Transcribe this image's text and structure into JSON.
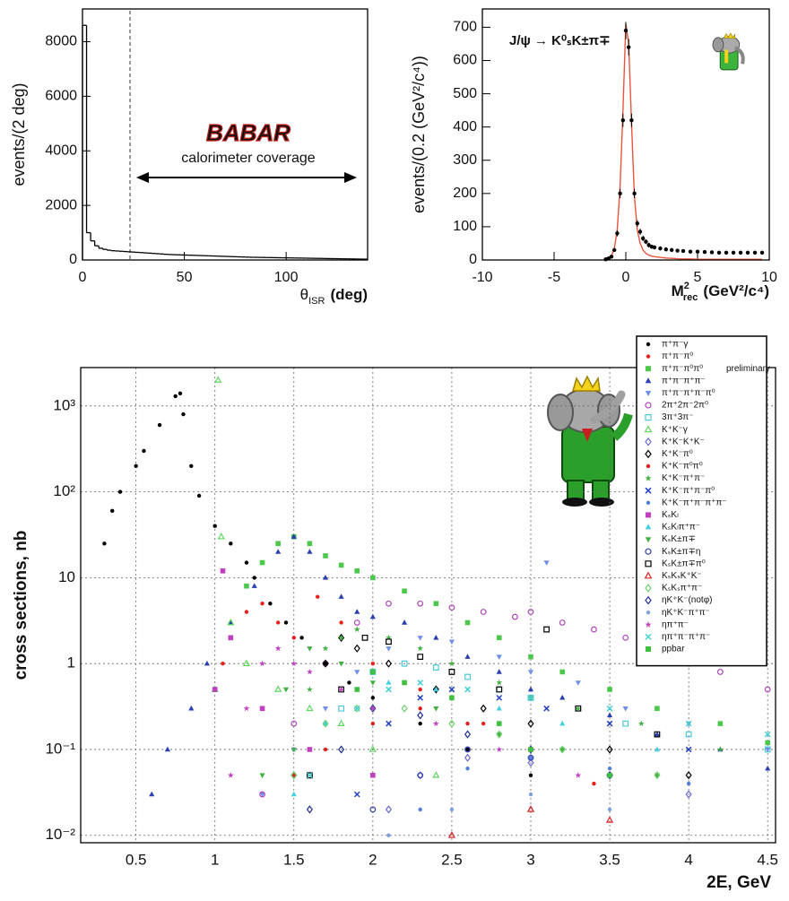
{
  "chart_data": [
    {
      "type": "histogram",
      "y_label": "events/(2 deg)",
      "x_label": {
        "text": "θ",
        "sub": "ISR",
        "unit": "(deg)"
      },
      "logo": "BABAR",
      "annotation": "calorimeter coverage",
      "bins": [
        0,
        2,
        4,
        6,
        8,
        10,
        12,
        14,
        16,
        18,
        20,
        22,
        24,
        26,
        28,
        30,
        32,
        34,
        36,
        38,
        40,
        42,
        44,
        46,
        48,
        50,
        52,
        54,
        56,
        58,
        60,
        62,
        64,
        66,
        68,
        70,
        72,
        74,
        76,
        78,
        80,
        82,
        84,
        86,
        88,
        90,
        92,
        94,
        96,
        98,
        100,
        102,
        104,
        106,
        108,
        110,
        112,
        114,
        116,
        118,
        120,
        122,
        124,
        126,
        128,
        130,
        132,
        134,
        136,
        138,
        140
      ],
      "values": [
        8600,
        1000,
        700,
        520,
        430,
        390,
        360,
        340,
        330,
        320,
        310,
        300,
        290,
        280,
        270,
        260,
        250,
        240,
        230,
        220,
        210,
        200,
        195,
        190,
        185,
        180,
        175,
        170,
        165,
        160,
        155,
        150,
        145,
        140,
        135,
        130,
        125,
        120,
        115,
        110,
        105,
        100,
        98,
        95,
        92,
        90,
        88,
        85,
        82,
        80,
        78,
        75,
        72,
        70,
        68,
        65,
        62,
        60,
        58,
        55,
        52,
        50,
        48,
        45,
        42,
        40,
        38,
        35,
        32,
        30
      ],
      "color": "#000000",
      "xlim": [
        0,
        140
      ],
      "ylim": [
        0,
        9200
      ],
      "xticks": [
        0,
        50,
        100
      ],
      "yticks": [
        0,
        2000,
        4000,
        6000,
        8000
      ]
    },
    {
      "type": "scatter",
      "annotation": "J/ψ → K⁰ₛK±π∓",
      "y_label": "events/(0.2 (GeV²/c⁴))",
      "x_label": {
        "text": "M",
        "sup": "2",
        "sub": "rec",
        "unit": "(GeV²/c⁴)"
      },
      "x": [
        -1.4,
        -1.2,
        -1.0,
        -0.8,
        -0.6,
        -0.4,
        -0.2,
        0,
        0.2,
        0.4,
        0.6,
        0.8,
        1.0,
        1.2,
        1.4,
        1.6,
        1.8,
        2.0,
        2.4,
        2.8,
        3.2,
        3.6,
        4,
        4.5,
        5,
        5.5,
        6,
        6.5,
        7,
        7.5,
        8,
        8.5,
        9,
        9.5
      ],
      "series": [
        {
          "color": "#e8553f",
          "line": true,
          "values": [
            2,
            5,
            12,
            35,
            90,
            220,
            450,
            710,
            650,
            410,
            190,
            90,
            50,
            30,
            20,
            15,
            12,
            10,
            8,
            6,
            5,
            4,
            3,
            3,
            2,
            2,
            2,
            2,
            2,
            2,
            2,
            2,
            2,
            2
          ]
        },
        {
          "color": "#000000",
          "marker": "dot",
          "values": [
            2,
            5,
            10,
            30,
            80,
            200,
            420,
            690,
            640,
            420,
            200,
            110,
            85,
            65,
            55,
            45,
            40,
            38,
            35,
            32,
            30,
            28,
            27,
            25,
            25,
            24,
            23,
            22,
            22,
            22,
            22,
            22,
            22,
            22
          ],
          "errors": [
            1,
            2,
            3,
            5,
            9,
            14,
            20,
            26,
            25,
            20,
            14,
            10,
            9,
            8,
            7,
            7,
            6,
            6,
            6,
            6,
            5,
            5,
            5,
            5,
            5,
            5,
            5,
            5,
            5,
            5,
            5,
            5,
            5,
            5
          ]
        }
      ],
      "xlim": [
        -10,
        10
      ],
      "ylim": [
        0,
        755
      ],
      "xticks": [
        -10,
        -5,
        0,
        5,
        10
      ],
      "yticks": [
        0,
        100,
        200,
        300,
        400,
        500,
        600,
        700
      ]
    },
    {
      "type": "scatter",
      "y_label": "cross sections, nb",
      "x_label": "2E, GeV",
      "annotation": "preliminary",
      "log_y": true,
      "grid": true,
      "legend": "upper right",
      "xlim": [
        0.15,
        4.55
      ],
      "ylim": [
        0.0082,
        2800
      ],
      "xticks": [
        0.5,
        1,
        1.5,
        2,
        2.5,
        3,
        3.5,
        4,
        4.5
      ],
      "yticks": [
        {
          "value": 0.01,
          "label": "10⁻²"
        },
        {
          "value": 0.1,
          "label": "10⁻¹"
        },
        1,
        10,
        {
          "value": 100,
          "label": "10²"
        },
        {
          "value": 1000,
          "label": "10³"
        }
      ],
      "series": [
        {
          "name": "π⁺π⁻γ",
          "color": "#000000",
          "marker": "dot",
          "x": [
            0.3,
            0.35,
            0.4,
            0.5,
            0.55,
            0.65,
            0.75,
            0.78,
            0.8,
            0.85,
            0.9,
            1.0,
            1.1,
            1.2,
            1.25,
            1.35,
            1.45,
            1.55,
            1.7,
            1.85,
            2.0,
            2.3,
            2.6,
            3.0
          ],
          "values": [
            25,
            60,
            100,
            200,
            300,
            600,
            1300,
            1400,
            800,
            200,
            90,
            40,
            25,
            15,
            10,
            5,
            3,
            2,
            1,
            0.6,
            0.4,
            0.2,
            0.1,
            0.05
          ]
        },
        {
          "name": "π⁺π⁻π⁰",
          "color": "#e8201c",
          "marker": "dot",
          "x": [
            1.05,
            1.1,
            1.2,
            1.3,
            1.4,
            1.5,
            1.65,
            1.8,
            2.0,
            2.3,
            2.7,
            3.0,
            3.4
          ],
          "values": [
            1,
            3,
            4,
            5,
            3,
            2,
            6,
            3,
            1,
            0.5,
            0.2,
            0.1,
            0.04
          ]
        },
        {
          "name": "π⁺π⁻π⁰π⁰",
          "color": "#4cc84c",
          "marker": "square",
          "x": [
            1.0,
            1.1,
            1.2,
            1.3,
            1.4,
            1.5,
            1.6,
            1.7,
            1.8,
            1.9,
            2.0,
            2.2,
            2.4,
            2.6,
            2.8,
            3.0,
            3.2,
            3.5,
            3.8,
            4.2,
            4.5
          ],
          "values": [
            0.5,
            2,
            8,
            15,
            25,
            30,
            25,
            18,
            14,
            12,
            10,
            7,
            5,
            3,
            2,
            1.2,
            0.8,
            0.5,
            0.3,
            0.2,
            0.12
          ]
        },
        {
          "name": "π⁺π⁻π⁺π⁻",
          "color": "#2a3fb0",
          "marker": "triangle",
          "x": [
            0.6,
            0.7,
            0.85,
            0.95,
            1.1,
            1.25,
            1.4,
            1.5,
            1.6,
            1.7,
            1.8,
            1.9,
            2.0,
            2.2,
            2.4,
            2.6,
            2.8,
            3.0,
            3.2,
            3.5,
            3.8,
            4.2,
            4.5
          ],
          "values": [
            0.03,
            0.1,
            0.3,
            1,
            3,
            8,
            20,
            30,
            20,
            10,
            6,
            4,
            3.5,
            3,
            2,
            1.2,
            0.8,
            0.5,
            0.4,
            0.25,
            0.15,
            0.1,
            0.06
          ]
        },
        {
          "name": "π⁺π⁻π⁺π⁻π⁰",
          "color": "#6f8fe8",
          "marker": "triangle-down",
          "x": [
            1.3,
            1.5,
            1.7,
            1.9,
            2.1,
            2.3,
            2.5,
            2.8,
            3.0,
            3.1,
            3.3,
            3.6,
            4.0,
            4.5
          ],
          "values": [
            0.03,
            0.1,
            0.3,
            0.8,
            1.5,
            2,
            1.8,
            1.2,
            0.8,
            15,
            0.6,
            0.3,
            0.2,
            0.1
          ]
        },
        {
          "name": "2π⁺2π⁻2π⁰",
          "color": "#b044b8",
          "marker": "circle-open",
          "x": [
            1.3,
            1.5,
            1.7,
            1.9,
            2.1,
            2.3,
            2.5,
            2.7,
            2.9,
            3.0,
            3.2,
            3.4,
            3.6,
            3.8,
            4.0,
            4.2,
            4.5
          ],
          "values": [
            0.03,
            0.2,
            1,
            3,
            5,
            5,
            4.5,
            4,
            3.5,
            4,
            3,
            2.5,
            2,
            1.5,
            1,
            0.8,
            0.5
          ]
        },
        {
          "name": "3π⁺3π⁻",
          "color": "#4cc8d8",
          "marker": "square-open",
          "x": [
            1.6,
            1.8,
            2.0,
            2.2,
            2.4,
            2.6,
            2.8,
            3.0,
            3.3,
            3.6,
            4.0,
            4.5
          ],
          "values": [
            0.05,
            0.3,
            0.8,
            1,
            0.9,
            0.7,
            0.5,
            0.4,
            0.3,
            0.2,
            0.15,
            0.1
          ]
        },
        {
          "name": "K⁺K⁻γ",
          "color": "#5ed85e",
          "marker": "triangle-open",
          "x": [
            1.0,
            1.02,
            1.04,
            1.1,
            1.2,
            1.4,
            1.6,
            1.8,
            2.0,
            2.4
          ],
          "values": [
            0.5,
            2000,
            30,
            3,
            1,
            0.5,
            0.3,
            0.2,
            0.1,
            0.05
          ]
        },
        {
          "name": "K⁺K⁻K⁺K⁻",
          "color": "#6a6ad0",
          "marker": "diamond-open",
          "x": [
            2.1,
            2.3,
            2.6,
            3.0,
            3.5,
            4.0
          ],
          "values": [
            0.02,
            0.05,
            0.08,
            0.07,
            0.05,
            0.03
          ]
        },
        {
          "name": "K⁺K⁻π⁰",
          "color": "#000000",
          "marker": "diamond-open",
          "x": [
            1.5,
            1.7,
            1.8,
            1.9,
            2.1,
            2.4,
            2.7,
            3.0,
            3.5,
            4.0
          ],
          "values": [
            0.05,
            1,
            2,
            1.5,
            1,
            0.5,
            0.3,
            0.2,
            0.1,
            0.05
          ]
        },
        {
          "name": "K⁺K⁻π⁰π⁰",
          "color": "#e02020",
          "marker": "dot",
          "x": [
            1.5,
            1.7,
            2.0,
            2.3,
            2.6,
            3.0,
            3.5
          ],
          "values": [
            0.05,
            0.1,
            0.2,
            0.3,
            0.2,
            0.1,
            0.05
          ]
        },
        {
          "name": "K⁺K⁻π⁺π⁻",
          "color": "#40b040",
          "marker": "star",
          "x": [
            1.5,
            1.6,
            1.7,
            1.8,
            1.9,
            2.1,
            2.3,
            2.5,
            2.8,
            3.0,
            3.3,
            3.7,
            4.2
          ],
          "values": [
            0.1,
            0.5,
            1.5,
            2,
            2.5,
            2,
            1.5,
            1,
            0.6,
            0.4,
            0.3,
            0.2,
            0.1
          ]
        },
        {
          "name": "K⁺K⁻π⁺π⁻π⁰",
          "color": "#2040c0",
          "marker": "x",
          "x": [
            1.9,
            2.1,
            2.3,
            2.5,
            2.8,
            3.1,
            3.5,
            4.0
          ],
          "values": [
            0.03,
            0.2,
            0.4,
            0.5,
            0.4,
            0.3,
            0.2,
            0.1
          ]
        },
        {
          "name": "K⁺K⁻π⁺π⁻π⁺π⁻",
          "color": "#4f7fd8",
          "marker": "dot",
          "x": [
            2.3,
            2.6,
            3.0,
            3.5,
            4.0
          ],
          "values": [
            0.02,
            0.06,
            0.08,
            0.06,
            0.04
          ]
        },
        {
          "name": "KₛKₗ",
          "color": "#c040c0",
          "marker": "square",
          "x": [
            1.0,
            1.05,
            1.1,
            1.3,
            1.6,
            2.0
          ],
          "values": [
            0.5,
            12,
            2,
            0.3,
            0.1,
            0.05
          ]
        },
        {
          "name": "KₛKₗπ⁺π⁻",
          "color": "#40d0e0",
          "marker": "triangle",
          "x": [
            1.5,
            1.7,
            1.9,
            2.1,
            2.4,
            2.8,
            3.2,
            3.8
          ],
          "values": [
            0.03,
            0.2,
            0.5,
            0.6,
            0.5,
            0.3,
            0.2,
            0.1
          ]
        },
        {
          "name": "KₛK±π∓",
          "color": "#40b040",
          "marker": "triangle-down",
          "x": [
            1.3,
            1.45,
            1.6,
            1.8,
            2.0,
            2.4,
            2.8,
            3.2,
            3.8
          ],
          "values": [
            0.05,
            0.5,
            1.5,
            1,
            0.6,
            0.3,
            0.15,
            0.1,
            0.05
          ]
        },
        {
          "name": "KₛK±π∓η",
          "color": "#3040b0",
          "marker": "circle-open",
          "x": [
            2.0,
            2.3,
            2.6,
            3.0,
            3.5
          ],
          "values": [
            0.02,
            0.05,
            0.1,
            0.08,
            0.05
          ]
        },
        {
          "name": "KₛK±π∓π⁰",
          "color": "#000000",
          "marker": "square-open",
          "x": [
            1.6,
            1.8,
            1.95,
            2.1,
            2.3,
            2.5,
            2.8,
            3.1,
            3.3,
            3.8
          ],
          "values": [
            0.05,
            0.5,
            2,
            1.8,
            1.2,
            0.8,
            0.5,
            2.5,
            0.3,
            0.15
          ]
        },
        {
          "name": "KₛKₛK⁺K⁻",
          "color": "#e02020",
          "marker": "triangle-open",
          "x": [
            2.5,
            3.0,
            3.5
          ],
          "values": [
            0.01,
            0.02,
            0.015
          ]
        },
        {
          "name": "KₛKₛπ⁺π⁻",
          "color": "#70d070",
          "marker": "diamond-open",
          "x": [
            1.5,
            1.7,
            1.9,
            2.2,
            2.5,
            2.8,
            3.2,
            3.8
          ],
          "values": [
            0.05,
            0.2,
            0.3,
            0.3,
            0.2,
            0.15,
            0.1,
            0.05
          ]
        },
        {
          "name": "ηK⁺K⁻(notφ)",
          "color": "#203090",
          "marker": "diamond-open",
          "x": [
            1.6,
            1.8,
            2.0,
            2.3,
            2.6,
            3.0,
            3.5
          ],
          "values": [
            0.02,
            0.1,
            0.3,
            0.25,
            0.15,
            0.1,
            0.05
          ]
        },
        {
          "name": "ηK⁺K⁻π⁺π⁻",
          "color": "#80a0e0",
          "marker": "dot",
          "x": [
            2.1,
            2.5,
            3.0,
            3.5
          ],
          "values": [
            0.01,
            0.02,
            0.03,
            0.02
          ]
        },
        {
          "name": "ηπ⁺π⁻",
          "color": "#c040c0",
          "marker": "star",
          "x": [
            1.1,
            1.2,
            1.3,
            1.4,
            1.5,
            1.6,
            1.8,
            2.0,
            2.4,
            2.8,
            3.3
          ],
          "values": [
            0.05,
            0.3,
            1,
            1.5,
            1,
            0.8,
            0.5,
            0.3,
            0.2,
            0.1,
            0.05
          ]
        },
        {
          "name": "ηπ⁺π⁻π⁺π⁻",
          "color": "#40d0d0",
          "marker": "x",
          "x": [
            1.6,
            1.9,
            2.1,
            2.3,
            2.6,
            3.0,
            3.5,
            4.0,
            4.5
          ],
          "values": [
            0.05,
            0.3,
            0.5,
            0.6,
            0.5,
            0.4,
            0.3,
            0.2,
            0.15
          ]
        },
        {
          "name": "ppbar",
          "color": "#40c040",
          "marker": "square",
          "x": [
            1.9,
            2.0,
            2.2,
            2.5,
            2.8,
            3.0,
            3.5
          ],
          "values": [
            0.5,
            0.8,
            0.6,
            0.4,
            0.2,
            0.1,
            0.05
          ]
        }
      ]
    }
  ]
}
